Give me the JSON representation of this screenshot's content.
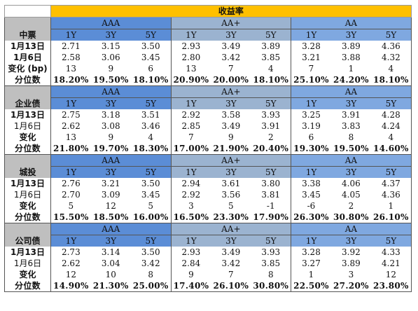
{
  "title": "收益率",
  "tenors": [
    "1Y",
    "3Y",
    "5Y"
  ],
  "ratings": [
    "AAA",
    "AA+",
    "AA"
  ],
  "sections": [
    {
      "name": "中票",
      "rows": [
        {
          "label": "1月13日",
          "values": [
            "2.71",
            "3.15",
            "3.50",
            "2.93",
            "3.49",
            "3.89",
            "3.28",
            "3.89",
            "4.36"
          ]
        },
        {
          "label": "1月6日",
          "values": [
            "2.58",
            "3.06",
            "3.45",
            "2.80",
            "3.42",
            "3.85",
            "3.21",
            "3.88",
            "4.32"
          ]
        },
        {
          "label": "变化 (bp)",
          "values": [
            "13",
            "9",
            "6",
            "13",
            "7",
            "4",
            "7",
            "1",
            "4"
          ]
        },
        {
          "label": "分位数",
          "values": [
            "18.20%",
            "19.50%",
            "18.10%",
            "20.90%",
            "20.00%",
            "18.10%",
            "25.10%",
            "24.20%",
            "18.10%"
          ]
        }
      ]
    },
    {
      "name": "企业债",
      "rows": [
        {
          "label": "1月13日",
          "values": [
            "2.75",
            "3.18",
            "3.51",
            "2.92",
            "3.58",
            "3.93",
            "3.25",
            "3.91",
            "4.28"
          ]
        },
        {
          "label": "1月6日",
          "values": [
            "2.62",
            "3.08",
            "3.46",
            "2.85",
            "3.49",
            "3.91",
            "3.19",
            "3.83",
            "4.24"
          ]
        },
        {
          "label": "变化",
          "values": [
            "13",
            "9",
            "4",
            "7",
            "9",
            "2",
            "6",
            "8",
            "4"
          ]
        },
        {
          "label": "分位数",
          "values": [
            "21.80%",
            "19.70%",
            "18.30%",
            "17.00%",
            "21.90%",
            "20.40%",
            "19.30%",
            "19.50%",
            "14.60%"
          ]
        }
      ]
    },
    {
      "name": "城投",
      "rows": [
        {
          "label": "1月13日",
          "values": [
            "2.76",
            "3.21",
            "3.50",
            "2.94",
            "3.61",
            "3.80",
            "3.38",
            "4.06",
            "4.37"
          ]
        },
        {
          "label": "1月6日",
          "values": [
            "2.70",
            "3.09",
            "3.45",
            "2.92",
            "3.56",
            "3.81",
            "3.45",
            "4.05",
            "4.36"
          ]
        },
        {
          "label": "变化",
          "values": [
            "5",
            "12",
            "5",
            "3",
            "5",
            "-1",
            "-6",
            "2",
            "1"
          ]
        },
        {
          "label": "分位数",
          "values": [
            "15.50%",
            "18.50%",
            "16.00%",
            "16.50%",
            "23.30%",
            "17.90%",
            "26.30%",
            "30.80%",
            "26.10%"
          ]
        }
      ]
    },
    {
      "name": "公司债",
      "rows": [
        {
          "label": "1月13日",
          "values": [
            "2.73",
            "3.14",
            "3.50",
            "2.93",
            "3.49",
            "3.93",
            "3.28",
            "3.92",
            "4.33"
          ]
        },
        {
          "label": "1月6日",
          "values": [
            "2.62",
            "3.04",
            "3.42",
            "2.84",
            "3.42",
            "3.85",
            "3.27",
            "3.89",
            "4.21"
          ]
        },
        {
          "label": "变化",
          "values": [
            "12",
            "10",
            "8",
            "9",
            "7",
            "8",
            "1",
            "3",
            "12"
          ]
        },
        {
          "label": "分位数",
          "values": [
            "14.90%",
            "21.30%",
            "25.00%",
            "17.40%",
            "26.10%",
            "30.80%",
            "22.50%",
            "27.20%",
            "23.80%"
          ]
        }
      ]
    }
  ]
}
